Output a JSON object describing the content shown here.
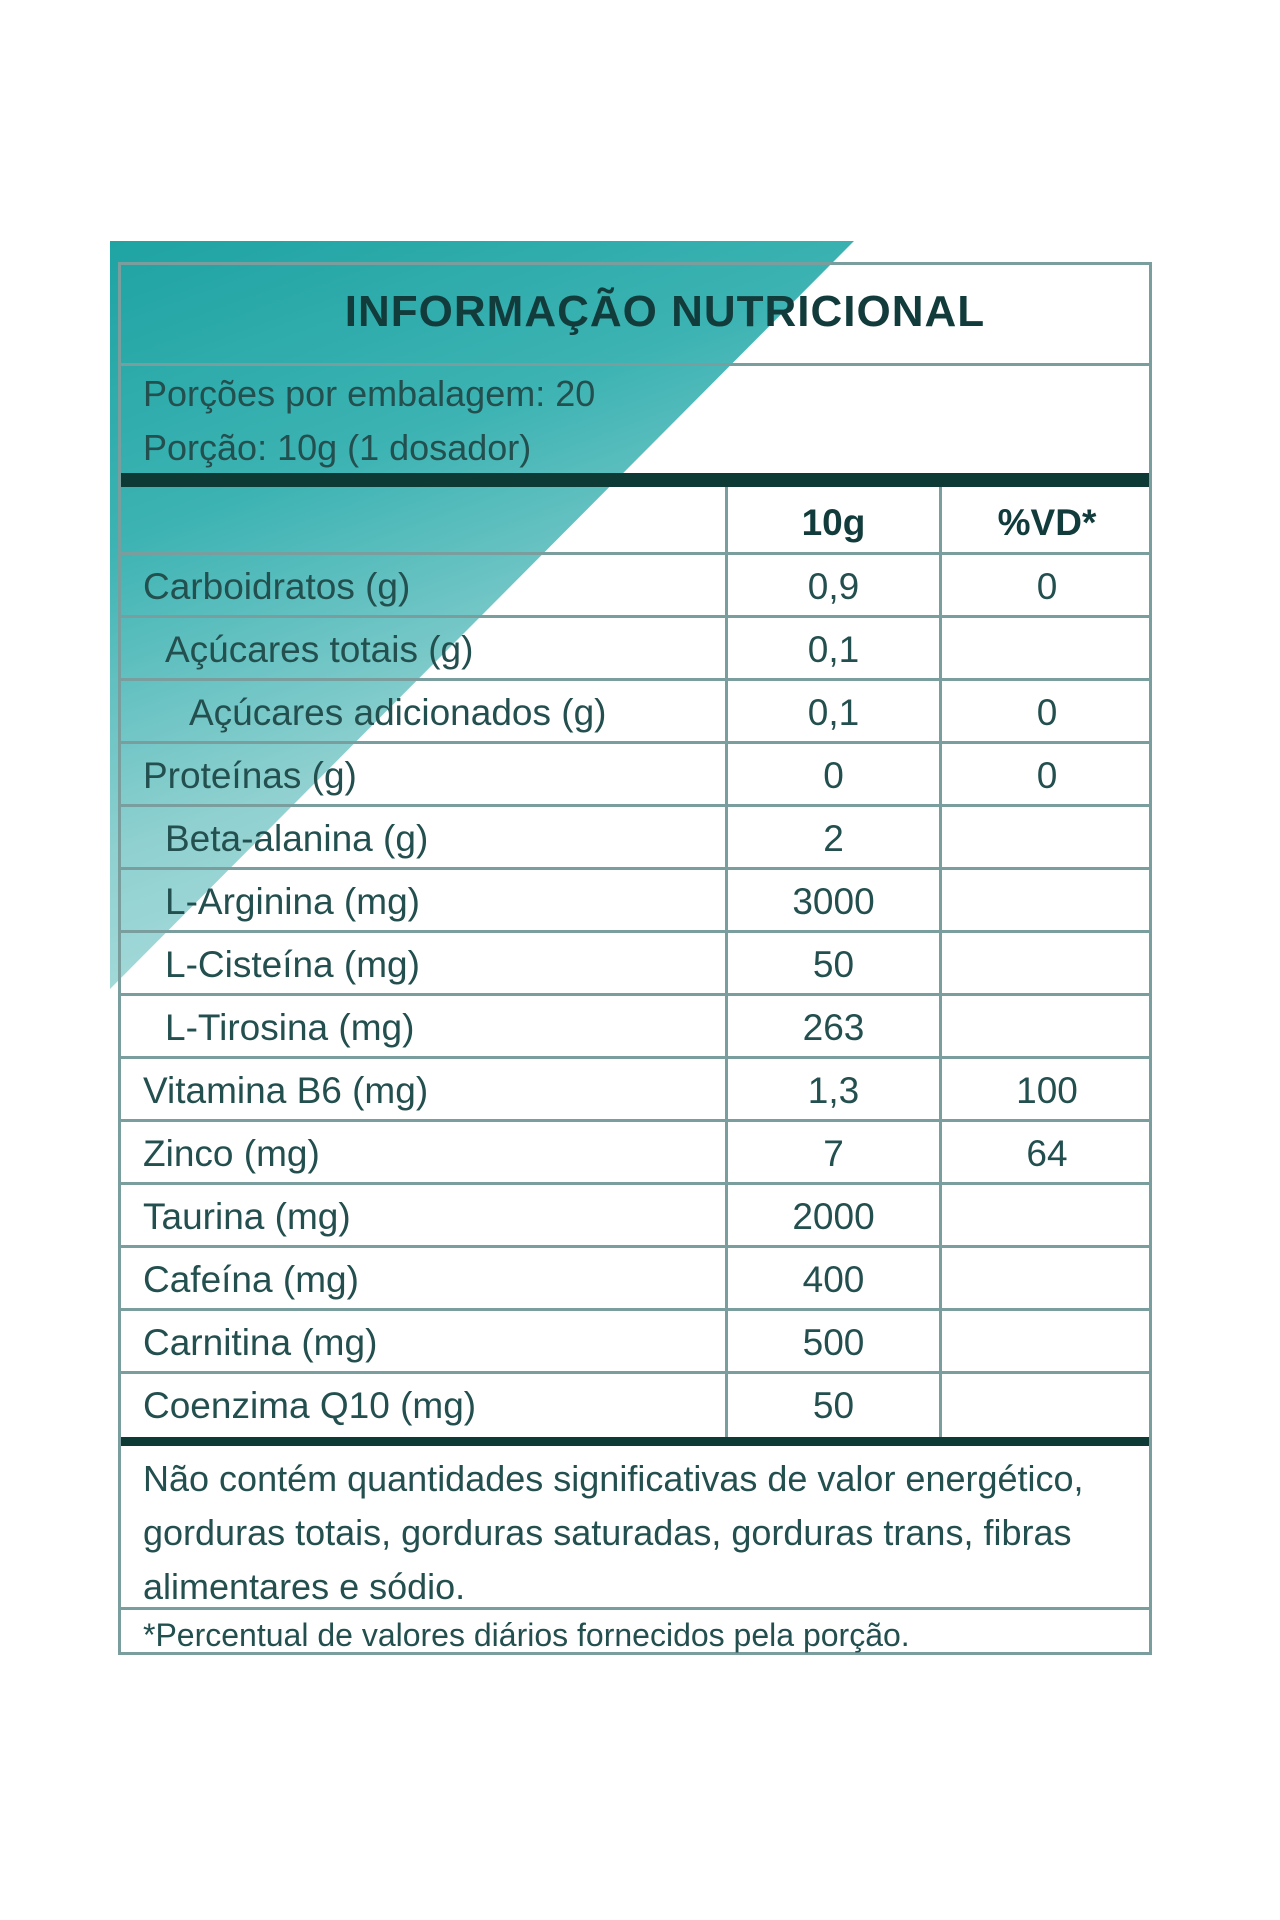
{
  "title": "INFORMAÇÃO NUTRICIONAL",
  "servings_per_package": "Porções por embalagem: 20",
  "serving_size": "Porção: 10g (1 dosador)",
  "columns": {
    "amount": "10g",
    "dv": "%VD*"
  },
  "rows": [
    {
      "name": "Carboidratos (g)",
      "value": "0,9",
      "dv": "0",
      "indent": 0
    },
    {
      "name": "Açúcares totais (g)",
      "value": "0,1",
      "dv": "",
      "indent": 1
    },
    {
      "name": "Açúcares adicionados (g)",
      "value": "0,1",
      "dv": "0",
      "indent": 2
    },
    {
      "name": "Proteínas (g)",
      "value": "0",
      "dv": "0",
      "indent": 0
    },
    {
      "name": "Beta-alanina (g)",
      "value": "2",
      "dv": "",
      "indent": 1
    },
    {
      "name": "L-Arginina (mg)",
      "value": "3000",
      "dv": "",
      "indent": 1
    },
    {
      "name": "L-Cisteína (mg)",
      "value": "50",
      "dv": "",
      "indent": 1
    },
    {
      "name": "L-Tirosina (mg)",
      "value": "263",
      "dv": "",
      "indent": 1
    },
    {
      "name": "Vitamina B6 (mg)",
      "value": "1,3",
      "dv": "100",
      "indent": 0
    },
    {
      "name": "Zinco (mg)",
      "value": "7",
      "dv": "64",
      "indent": 0
    },
    {
      "name": "Taurina (mg)",
      "value": "2000",
      "dv": "",
      "indent": 0
    },
    {
      "name": "Cafeína (mg)",
      "value": "400",
      "dv": "",
      "indent": 0
    },
    {
      "name": "Carnitina (mg)",
      "value": "500",
      "dv": "",
      "indent": 0
    },
    {
      "name": "Coenzima Q10 (mg)",
      "value": "50",
      "dv": "",
      "indent": 0
    }
  ],
  "footnote": "Não contém quantidades significativas de  valor energético, gorduras totais, gorduras saturadas, gorduras trans, fibras alimentares e sódio.",
  "dv_note": "*Percentual de valores diários fornecidos pela porção.",
  "colors": {
    "accent": "#1fa3a3",
    "text": "#234f4f",
    "rule": "#0e3a36",
    "border": "#7a9e9e"
  }
}
